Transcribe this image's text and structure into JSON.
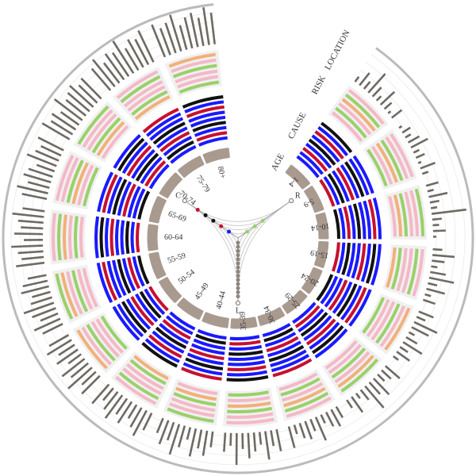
{
  "chart_data": {
    "type": "radial",
    "tracks": [
      "AGE",
      "CAUSE",
      "RISK",
      "LOCATION"
    ],
    "nodes": [
      "R",
      "L",
      "C"
    ],
    "categories": [
      "1-4",
      "5-9",
      "10-14",
      "15-19",
      "20-24",
      "25-29",
      "30-34",
      "35-39",
      "40-44",
      "45-49",
      "50-54",
      "55-59",
      "60-64",
      "65-69",
      "70-74",
      "75-79",
      "80+"
    ],
    "color": "#6e6a64",
    "values": [
      [
        2,
        5,
        3,
        8,
        4,
        2,
        6,
        3,
        1,
        4
      ],
      [
        1,
        3,
        2,
        4,
        6,
        2,
        3,
        1,
        5,
        2
      ],
      [
        4,
        2,
        6,
        3,
        2,
        11,
        3,
        2,
        4,
        1
      ],
      [
        3,
        7,
        4,
        2,
        5,
        8,
        3,
        6,
        2,
        4
      ],
      [
        5,
        3,
        8,
        6,
        2,
        4,
        7,
        3,
        5,
        2
      ],
      [
        6,
        4,
        3,
        7,
        5,
        9,
        4,
        2,
        6,
        3
      ],
      [
        4,
        6,
        5,
        3,
        8,
        4,
        6,
        5,
        3,
        7
      ],
      [
        7,
        5,
        9,
        4,
        6,
        8,
        5,
        10,
        4,
        6
      ],
      [
        5,
        8,
        6,
        9,
        4,
        7,
        10,
        6,
        8,
        5
      ],
      [
        6,
        9,
        7,
        5,
        8,
        6,
        9,
        7,
        5,
        8
      ],
      [
        8,
        6,
        10,
        7,
        9,
        5,
        8,
        6,
        9,
        7
      ],
      [
        7,
        9,
        6,
        8,
        10,
        7,
        6,
        9,
        8,
        6
      ],
      [
        9,
        7,
        8,
        10,
        6,
        9,
        7,
        8,
        10,
        7
      ],
      [
        8,
        10,
        7,
        9,
        8,
        6,
        10,
        8,
        7,
        9
      ],
      [
        10,
        8,
        9,
        7,
        11,
        8,
        9,
        10,
        8,
        9
      ],
      [
        9,
        11,
        8,
        10,
        9,
        12,
        8,
        10,
        9,
        11
      ],
      [
        11,
        9,
        10,
        12,
        8,
        10,
        11,
        9,
        12,
        10
      ]
    ]
  }
}
